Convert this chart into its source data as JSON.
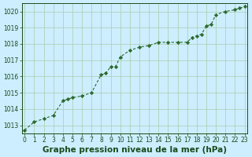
{
  "x": [
    0,
    1,
    2,
    3,
    4,
    4.5,
    5,
    6,
    7,
    8,
    8.5,
    9,
    9.5,
    10,
    11,
    12,
    13,
    14,
    15,
    16,
    17,
    17.5,
    18,
    18.5,
    19,
    19.5,
    20,
    21,
    22,
    22.5,
    23
  ],
  "y": [
    1012.7,
    1013.2,
    1013.4,
    1013.6,
    1014.5,
    1014.6,
    1014.7,
    1014.8,
    1015.0,
    1016.1,
    1016.2,
    1016.6,
    1016.6,
    1017.2,
    1017.6,
    1017.8,
    1017.9,
    1018.1,
    1018.1,
    1018.1,
    1018.1,
    1018.4,
    1018.5,
    1018.6,
    1019.1,
    1019.2,
    1019.8,
    1020.0,
    1020.1,
    1020.2,
    1020.3
  ],
  "xlim": [
    -0.3,
    23.3
  ],
  "ylim": [
    1012.5,
    1020.5
  ],
  "yticks": [
    1013,
    1014,
    1015,
    1016,
    1017,
    1018,
    1019,
    1020
  ],
  "xticks": [
    0,
    1,
    2,
    3,
    4,
    5,
    6,
    7,
    8,
    9,
    10,
    11,
    12,
    13,
    14,
    15,
    16,
    17,
    18,
    19,
    20,
    21,
    22,
    23
  ],
  "line_color": "#2d6a2d",
  "marker_color": "#2d6a2d",
  "bg_color": "#cceeff",
  "grid_color": "#aaccaa",
  "xlabel": "Graphe pression niveau de la mer (hPa)",
  "xlabel_color": "#1a4a1a",
  "tick_color": "#1a4a1a",
  "tick_fontsize": 5.5,
  "xlabel_fontsize": 7.5
}
